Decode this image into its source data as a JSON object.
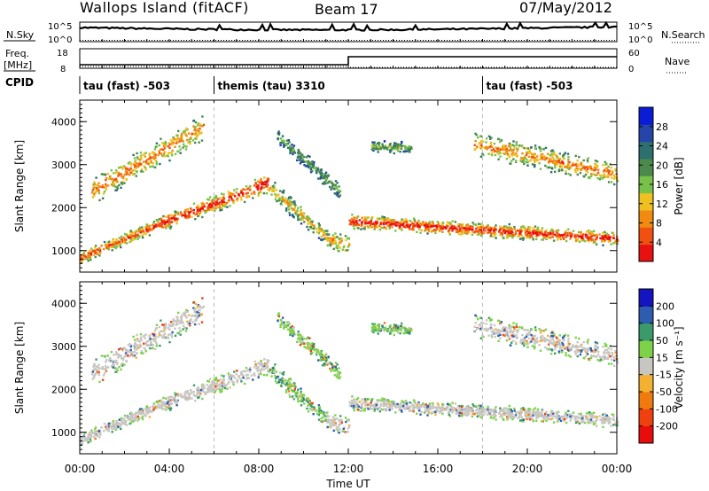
{
  "header": {
    "station": "Wallops Island (fitACF)",
    "beam": "Beam 17",
    "date": "07/May/2012"
  },
  "noise_panel": {
    "left_label": "N.Sky",
    "right_label": "N.Search",
    "left_ticks": [
      "10^5",
      "10^0"
    ],
    "right_ticks": [
      "10^5",
      "10^0"
    ]
  },
  "freq_panel": {
    "left_label_1": "Freq.",
    "left_label_2": "[MHz]",
    "left_ticks": [
      "18",
      "8"
    ],
    "right_label": "Nave",
    "right_ticks": [
      "60",
      "0"
    ]
  },
  "cpid": {
    "label": "CPID",
    "segments": [
      {
        "start_hour": 0,
        "text": "tau (fast) -503"
      },
      {
        "start_hour": 6,
        "text": "themis (tau) 3310"
      },
      {
        "start_hour": 18,
        "text": "tau (fast) -503"
      }
    ]
  },
  "time_axis": {
    "xlabel": "Time UT",
    "ticks": [
      "00:00",
      "04:00",
      "08:00",
      "12:00",
      "16:00",
      "20:00",
      "00:00"
    ]
  },
  "chart_data": [
    {
      "type": "heatmap",
      "title": "",
      "xlabel": "Time UT",
      "ylabel": "Slant Range [km]",
      "xlim_hours": [
        0,
        24
      ],
      "ylim_km": [
        500,
        4500
      ],
      "yticks": [
        "1000",
        "2000",
        "3000",
        "4000"
      ],
      "colorbar": {
        "label": "Power [dB]",
        "ticks": [
          "28",
          "24",
          "20",
          "16",
          "12",
          "8",
          "4"
        ],
        "colors": [
          "#0a1cd6",
          "#2546a8",
          "#2e6f70",
          "#4b8a4a",
          "#77c14a",
          "#f0c020",
          "#f08a10",
          "#f05010",
          "#e81010"
        ]
      },
      "scatter_bands": [
        {
          "h0": 0,
          "h1": 3.6,
          "r0": 850,
          "r1": 1650,
          "width": 160,
          "level": 0.82
        },
        {
          "h0": 3.6,
          "h1": 7.6,
          "r0": 1650,
          "r1": 2420,
          "width": 220,
          "level": 0.88
        },
        {
          "h0": 7.6,
          "h1": 8.4,
          "r0": 2420,
          "r1": 2620,
          "width": 260,
          "level": 0.95
        },
        {
          "h0": 8.4,
          "h1": 11.0,
          "r0": 2500,
          "r1": 1350,
          "width": 240,
          "level": 0.6
        },
        {
          "h0": 11.0,
          "h1": 12.0,
          "r0": 1300,
          "r1": 1150,
          "width": 260,
          "level": 0.65
        },
        {
          "h0": 12.0,
          "h1": 24.0,
          "r0": 1700,
          "r1": 1300,
          "width": 180,
          "level": 0.9
        },
        {
          "h0": 0.5,
          "h1": 5.5,
          "r0": 2400,
          "r1": 3900,
          "width": 350,
          "level": 0.72
        },
        {
          "h0": 8.8,
          "h1": 11.6,
          "r0": 3700,
          "r1": 2400,
          "width": 200,
          "level": 0.4
        },
        {
          "h0": 13.0,
          "h1": 14.8,
          "r0": 3450,
          "r1": 3400,
          "width": 150,
          "level": 0.45
        },
        {
          "h0": 17.6,
          "h1": 24.0,
          "r0": 3500,
          "r1": 2800,
          "width": 300,
          "level": 0.72
        }
      ]
    },
    {
      "type": "heatmap",
      "title": "",
      "xlabel": "Time UT",
      "ylabel": "Slant Range [km]",
      "xlim_hours": [
        0,
        24
      ],
      "ylim_km": [
        500,
        4500
      ],
      "yticks": [
        "1000",
        "2000",
        "3000",
        "4000"
      ],
      "colorbar": {
        "label": "Velocity [m s⁻¹]",
        "ticks": [
          "200",
          "100",
          "50",
          "15",
          "-15",
          "-50",
          "-100",
          "-200"
        ],
        "colors": [
          "#1414c0",
          "#2e5db0",
          "#3a9a6a",
          "#7ed24a",
          "#c8c6c0",
          "#f4b030",
          "#f07a10",
          "#f04010",
          "#e80c0c"
        ]
      },
      "ground_scatter_color": "#c8c6c0"
    }
  ]
}
